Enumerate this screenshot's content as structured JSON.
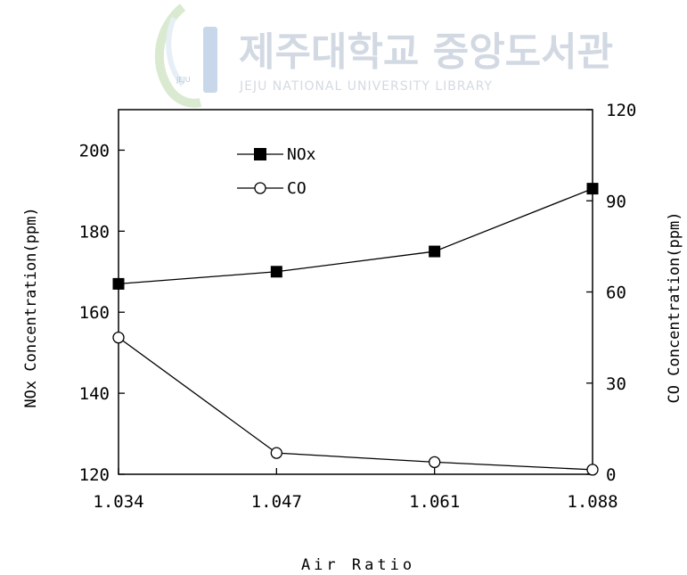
{
  "watermark": {
    "title": "제주대학교 중앙도서관",
    "subtitle": "JEJU NATIONAL UNIVERSITY LIBRARY",
    "logo_text": "JEJU"
  },
  "chart_data": {
    "type": "line",
    "categories": [
      "1.034",
      "1.047",
      "1.061",
      "1.088"
    ],
    "xlabel": "Air Ratio",
    "ylabel_left": "NOx Concentration(ppm)",
    "ylabel_right": "CO Concentration(ppm)",
    "ylim_left": [
      120,
      210
    ],
    "ylim_right": [
      0,
      120
    ],
    "yticks_left": [
      120,
      140,
      160,
      180,
      200
    ],
    "yticks_right": [
      0,
      30,
      60,
      90,
      120
    ],
    "legend_position": "upper-left",
    "series": [
      {
        "name": "NOx",
        "axis": "left",
        "marker": "filled-square",
        "values": [
          167,
          170,
          175,
          190.5
        ]
      },
      {
        "name": "CO",
        "axis": "right",
        "marker": "open-circle",
        "values": [
          45,
          7,
          4,
          1.5
        ]
      }
    ]
  }
}
